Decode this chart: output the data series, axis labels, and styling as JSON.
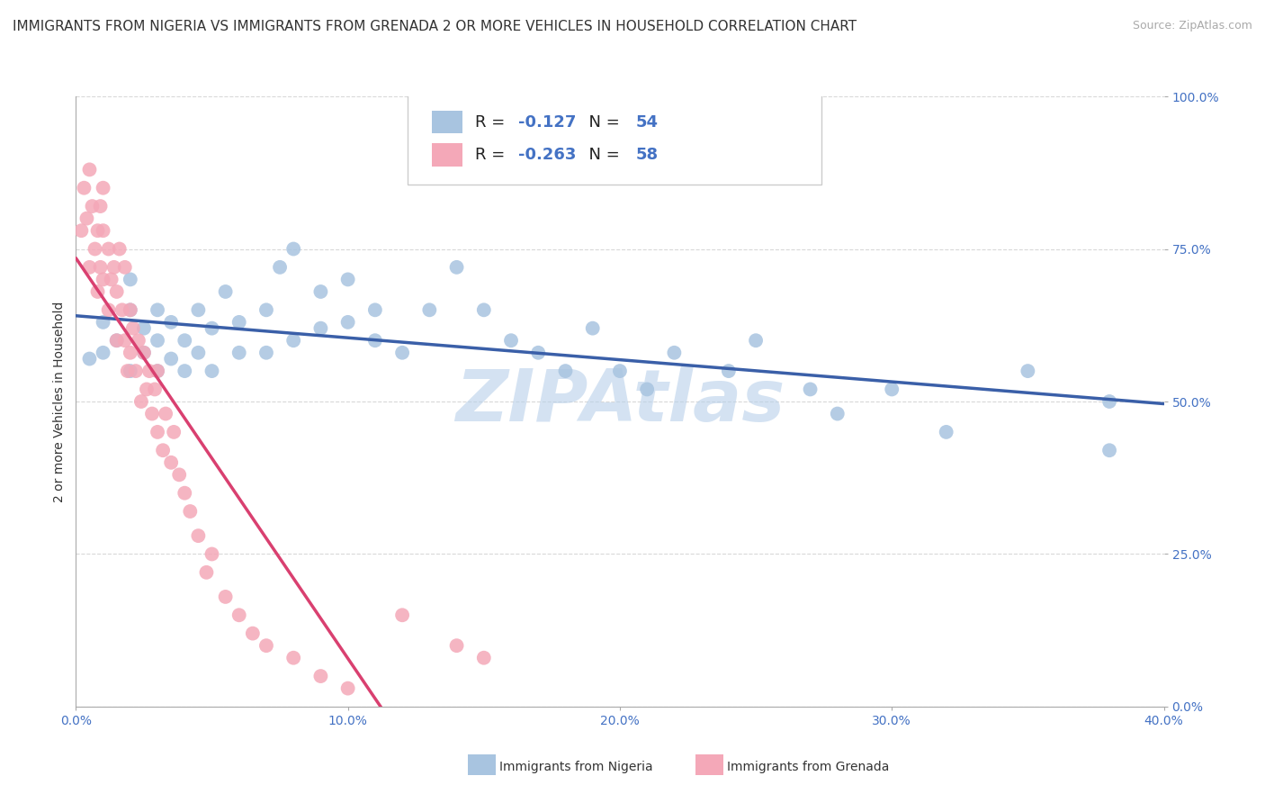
{
  "title": "IMMIGRANTS FROM NIGERIA VS IMMIGRANTS FROM GRENADA 2 OR MORE VEHICLES IN HOUSEHOLD CORRELATION CHART",
  "source": "Source: ZipAtlas.com",
  "ylabel": "2 or more Vehicles in Household",
  "watermark": "ZIPAtlas",
  "xlim": [
    0.0,
    0.4
  ],
  "ylim": [
    0.0,
    1.0
  ],
  "xticks": [
    0.0,
    0.1,
    0.2,
    0.3,
    0.4
  ],
  "yticks": [
    0.0,
    0.25,
    0.5,
    0.75,
    1.0
  ],
  "xtick_labels": [
    "0.0%",
    "10.0%",
    "20.0%",
    "30.0%",
    "40.0%"
  ],
  "ytick_labels": [
    "0.0%",
    "25.0%",
    "50.0%",
    "75.0%",
    "100.0%"
  ],
  "nigeria_color": "#a8c4e0",
  "grenada_color": "#f4a8b8",
  "nigeria_line_color": "#3a5fa8",
  "grenada_line_color": "#d94070",
  "nigeria_R": -0.127,
  "nigeria_N": 54,
  "grenada_R": -0.263,
  "grenada_N": 58,
  "legend_label_nigeria": "Immigrants from Nigeria",
  "legend_label_grenada": "Immigrants from Grenada",
  "nigeria_x": [
    0.005,
    0.01,
    0.01,
    0.015,
    0.02,
    0.02,
    0.02,
    0.025,
    0.025,
    0.03,
    0.03,
    0.03,
    0.035,
    0.035,
    0.04,
    0.04,
    0.045,
    0.045,
    0.05,
    0.05,
    0.055,
    0.06,
    0.06,
    0.07,
    0.07,
    0.075,
    0.08,
    0.08,
    0.09,
    0.09,
    0.1,
    0.1,
    0.11,
    0.11,
    0.12,
    0.13,
    0.14,
    0.15,
    0.16,
    0.17,
    0.18,
    0.19,
    0.2,
    0.21,
    0.22,
    0.24,
    0.25,
    0.27,
    0.28,
    0.3,
    0.32,
    0.35,
    0.38,
    0.38
  ],
  "nigeria_y": [
    0.57,
    0.63,
    0.58,
    0.6,
    0.55,
    0.65,
    0.7,
    0.58,
    0.62,
    0.55,
    0.6,
    0.65,
    0.57,
    0.63,
    0.55,
    0.6,
    0.58,
    0.65,
    0.55,
    0.62,
    0.68,
    0.58,
    0.63,
    0.65,
    0.58,
    0.72,
    0.6,
    0.75,
    0.62,
    0.68,
    0.63,
    0.7,
    0.6,
    0.65,
    0.58,
    0.65,
    0.72,
    0.65,
    0.6,
    0.58,
    0.55,
    0.62,
    0.55,
    0.52,
    0.58,
    0.55,
    0.6,
    0.52,
    0.48,
    0.52,
    0.45,
    0.55,
    0.5,
    0.42
  ],
  "grenada_x": [
    0.002,
    0.003,
    0.004,
    0.005,
    0.005,
    0.006,
    0.007,
    0.008,
    0.008,
    0.009,
    0.009,
    0.01,
    0.01,
    0.01,
    0.012,
    0.012,
    0.013,
    0.014,
    0.015,
    0.015,
    0.016,
    0.017,
    0.018,
    0.018,
    0.019,
    0.02,
    0.02,
    0.021,
    0.022,
    0.023,
    0.024,
    0.025,
    0.026,
    0.027,
    0.028,
    0.029,
    0.03,
    0.03,
    0.032,
    0.033,
    0.035,
    0.036,
    0.038,
    0.04,
    0.042,
    0.045,
    0.048,
    0.05,
    0.055,
    0.06,
    0.065,
    0.07,
    0.08,
    0.09,
    0.1,
    0.12,
    0.14,
    0.15
  ],
  "grenada_y": [
    0.78,
    0.85,
    0.8,
    0.88,
    0.72,
    0.82,
    0.75,
    0.78,
    0.68,
    0.82,
    0.72,
    0.85,
    0.7,
    0.78,
    0.75,
    0.65,
    0.7,
    0.72,
    0.68,
    0.6,
    0.75,
    0.65,
    0.6,
    0.72,
    0.55,
    0.65,
    0.58,
    0.62,
    0.55,
    0.6,
    0.5,
    0.58,
    0.52,
    0.55,
    0.48,
    0.52,
    0.45,
    0.55,
    0.42,
    0.48,
    0.4,
    0.45,
    0.38,
    0.35,
    0.32,
    0.28,
    0.22,
    0.25,
    0.18,
    0.15,
    0.12,
    0.1,
    0.08,
    0.05,
    0.03,
    0.15,
    0.1,
    0.08
  ],
  "background_color": "#ffffff",
  "grid_color": "#d8d8d8",
  "title_fontsize": 11,
  "source_fontsize": 9,
  "axis_label_fontsize": 10,
  "tick_fontsize": 10,
  "legend_fontsize": 13,
  "watermark_color": "#b8d0ea",
  "watermark_fontsize": 58
}
